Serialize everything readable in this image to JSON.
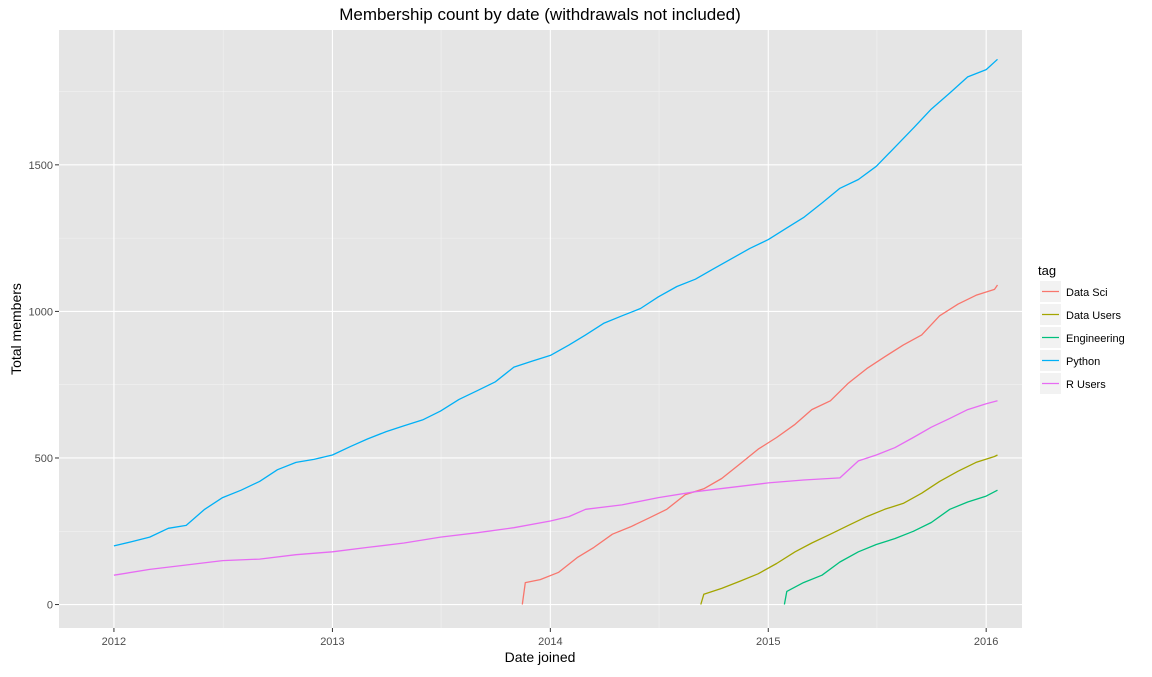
{
  "chart_data": {
    "type": "line",
    "title": "Membership count by date (withdrawals not included)",
    "xlabel": "Date joined",
    "ylabel": "Total members",
    "x_ticks": [
      "2012",
      "2013",
      "2014",
      "2015",
      "2016"
    ],
    "y_ticks": [
      "0",
      "500",
      "1000",
      "1500"
    ],
    "xlim": [
      "2011-10-01",
      "2016-03-01"
    ],
    "ylim": [
      -80,
      1960
    ],
    "grid": true,
    "legend": {
      "title": "tag",
      "placement": "right"
    },
    "series": [
      {
        "name": "Data Sci",
        "color": "#F8766D",
        "points": [
          [
            "2013-11-15",
            0
          ],
          [
            "2013-11-20",
            75
          ],
          [
            "2013-12-15",
            85
          ],
          [
            "2014-01-15",
            110
          ],
          [
            "2014-02-15",
            160
          ],
          [
            "2014-03-15",
            195
          ],
          [
            "2014-04-15",
            240
          ],
          [
            "2014-05-15",
            265
          ],
          [
            "2014-06-15",
            295
          ],
          [
            "2014-07-15",
            325
          ],
          [
            "2014-08-15",
            375
          ],
          [
            "2014-09-15",
            395
          ],
          [
            "2014-10-15",
            430
          ],
          [
            "2014-11-15",
            480
          ],
          [
            "2014-12-15",
            530
          ],
          [
            "2015-01-15",
            570
          ],
          [
            "2015-02-15",
            615
          ],
          [
            "2015-03-15",
            665
          ],
          [
            "2015-04-15",
            695
          ],
          [
            "2015-05-15",
            755
          ],
          [
            "2015-06-15",
            805
          ],
          [
            "2015-07-15",
            845
          ],
          [
            "2015-08-15",
            885
          ],
          [
            "2015-09-15",
            920
          ],
          [
            "2015-10-15",
            985
          ],
          [
            "2015-11-15",
            1025
          ],
          [
            "2015-12-15",
            1055
          ],
          [
            "2016-01-15",
            1075
          ],
          [
            "2016-01-20",
            1090
          ]
        ]
      },
      {
        "name": "Data Users",
        "color": "#A3A500",
        "points": [
          [
            "2014-09-10",
            0
          ],
          [
            "2014-09-15",
            35
          ],
          [
            "2014-10-15",
            55
          ],
          [
            "2014-11-15",
            80
          ],
          [
            "2014-12-15",
            105
          ],
          [
            "2015-01-15",
            140
          ],
          [
            "2015-02-15",
            180
          ],
          [
            "2015-03-15",
            210
          ],
          [
            "2015-04-15",
            240
          ],
          [
            "2015-05-15",
            270
          ],
          [
            "2015-06-15",
            300
          ],
          [
            "2015-07-15",
            325
          ],
          [
            "2015-08-15",
            345
          ],
          [
            "2015-09-15",
            380
          ],
          [
            "2015-10-15",
            420
          ],
          [
            "2015-11-15",
            455
          ],
          [
            "2015-12-15",
            485
          ],
          [
            "2016-01-15",
            505
          ],
          [
            "2016-01-20",
            510
          ]
        ]
      },
      {
        "name": "Engineering",
        "color": "#00BF7D",
        "points": [
          [
            "2015-01-28",
            0
          ],
          [
            "2015-02-01",
            45
          ],
          [
            "2015-03-01",
            75
          ],
          [
            "2015-04-01",
            100
          ],
          [
            "2015-05-01",
            145
          ],
          [
            "2015-06-01",
            180
          ],
          [
            "2015-07-01",
            205
          ],
          [
            "2015-08-01",
            225
          ],
          [
            "2015-09-01",
            250
          ],
          [
            "2015-10-01",
            280
          ],
          [
            "2015-11-01",
            325
          ],
          [
            "2015-12-01",
            350
          ],
          [
            "2016-01-01",
            370
          ],
          [
            "2016-01-20",
            390
          ]
        ]
      },
      {
        "name": "Python",
        "color": "#00B0F6",
        "points": [
          [
            "2012-01-01",
            200
          ],
          [
            "2012-02-01",
            215
          ],
          [
            "2012-03-01",
            230
          ],
          [
            "2012-04-01",
            260
          ],
          [
            "2012-05-01",
            270
          ],
          [
            "2012-06-01",
            325
          ],
          [
            "2012-07-01",
            365
          ],
          [
            "2012-08-01",
            390
          ],
          [
            "2012-09-01",
            420
          ],
          [
            "2012-10-01",
            460
          ],
          [
            "2012-11-01",
            485
          ],
          [
            "2012-12-01",
            495
          ],
          [
            "2013-01-01",
            510
          ],
          [
            "2013-02-01",
            540
          ],
          [
            "2013-03-01",
            565
          ],
          [
            "2013-04-01",
            590
          ],
          [
            "2013-05-01",
            610
          ],
          [
            "2013-06-01",
            630
          ],
          [
            "2013-07-01",
            660
          ],
          [
            "2013-08-01",
            700
          ],
          [
            "2013-09-01",
            730
          ],
          [
            "2013-10-01",
            760
          ],
          [
            "2013-11-01",
            810
          ],
          [
            "2013-12-01",
            830
          ],
          [
            "2014-01-01",
            850
          ],
          [
            "2014-02-01",
            885
          ],
          [
            "2014-03-01",
            920
          ],
          [
            "2014-04-01",
            960
          ],
          [
            "2014-05-01",
            985
          ],
          [
            "2014-06-01",
            1010
          ],
          [
            "2014-07-01",
            1050
          ],
          [
            "2014-08-01",
            1085
          ],
          [
            "2014-09-01",
            1110
          ],
          [
            "2014-10-01",
            1145
          ],
          [
            "2014-11-01",
            1180
          ],
          [
            "2014-12-01",
            1215
          ],
          [
            "2015-01-01",
            1245
          ],
          [
            "2015-02-01",
            1285
          ],
          [
            "2015-03-01",
            1320
          ],
          [
            "2015-04-01",
            1370
          ],
          [
            "2015-05-01",
            1420
          ],
          [
            "2015-06-01",
            1450
          ],
          [
            "2015-07-01",
            1495
          ],
          [
            "2015-08-01",
            1560
          ],
          [
            "2015-09-01",
            1625
          ],
          [
            "2015-10-01",
            1690
          ],
          [
            "2015-11-01",
            1745
          ],
          [
            "2015-12-01",
            1800
          ],
          [
            "2016-01-01",
            1825
          ],
          [
            "2016-01-20",
            1860
          ]
        ]
      },
      {
        "name": "R Users",
        "color": "#E76BF3",
        "points": [
          [
            "2012-01-01",
            100
          ],
          [
            "2012-03-01",
            120
          ],
          [
            "2012-05-01",
            135
          ],
          [
            "2012-07-01",
            150
          ],
          [
            "2012-09-01",
            155
          ],
          [
            "2012-11-01",
            170
          ],
          [
            "2013-01-01",
            180
          ],
          [
            "2013-03-01",
            195
          ],
          [
            "2013-05-01",
            210
          ],
          [
            "2013-07-01",
            230
          ],
          [
            "2013-09-01",
            245
          ],
          [
            "2013-11-01",
            262
          ],
          [
            "2014-01-01",
            285
          ],
          [
            "2014-02-01",
            300
          ],
          [
            "2014-03-01",
            325
          ],
          [
            "2014-05-01",
            340
          ],
          [
            "2014-07-01",
            365
          ],
          [
            "2014-09-01",
            385
          ],
          [
            "2014-11-01",
            400
          ],
          [
            "2015-01-01",
            415
          ],
          [
            "2015-03-01",
            425
          ],
          [
            "2015-05-01",
            432
          ],
          [
            "2015-06-01",
            490
          ],
          [
            "2015-07-01",
            510
          ],
          [
            "2015-08-01",
            535
          ],
          [
            "2015-09-01",
            570
          ],
          [
            "2015-10-01",
            605
          ],
          [
            "2015-11-01",
            635
          ],
          [
            "2015-12-01",
            665
          ],
          [
            "2016-01-01",
            685
          ],
          [
            "2016-01-20",
            695
          ]
        ]
      }
    ]
  }
}
